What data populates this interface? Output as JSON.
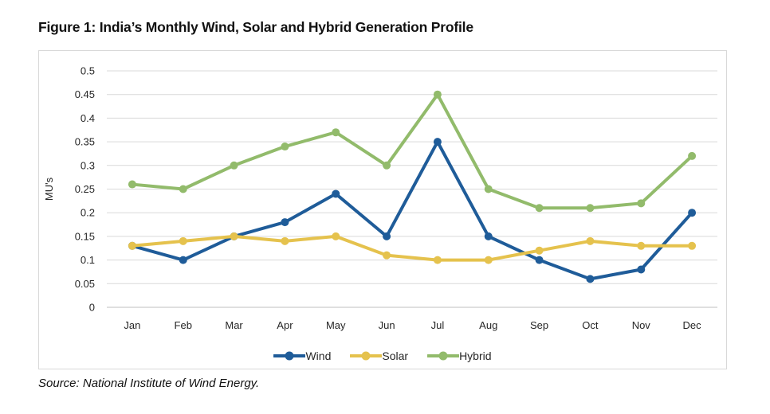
{
  "figure": {
    "title": "Figure 1: India’s Monthly Wind, Solar and Hybrid Generation Profile",
    "source": "Source: National Institute of Wind Energy."
  },
  "colors": {
    "gridline": "#d9d9d9",
    "zero_line": "#bfbfbf",
    "box_border": "#d9d9d9",
    "text": "#262626"
  },
  "chart_data": {
    "type": "line",
    "title": "",
    "xlabel": "",
    "ylabel": "MU's",
    "ylim": [
      0,
      0.5
    ],
    "grid": true,
    "legend_position": "bottom",
    "yticks": [
      0,
      0.05,
      0.1,
      0.15,
      0.2,
      0.25,
      0.3,
      0.35,
      0.4,
      0.45,
      0.5
    ],
    "ytick_labels": [
      "0",
      "0.05",
      "0.1",
      "0.15",
      "0.2",
      "0.25",
      "0.3",
      "0.35",
      "0.4",
      "0.45",
      "0.5"
    ],
    "categories": [
      "Jan",
      "Feb",
      "Mar",
      "Apr",
      "May",
      "Jun",
      "Jul",
      "Aug",
      "Sep",
      "Oct",
      "Nov",
      "Dec"
    ],
    "series": [
      {
        "name": "Wind",
        "color": "#1f5c99",
        "values": [
          0.13,
          0.1,
          0.15,
          0.18,
          0.24,
          0.15,
          0.35,
          0.15,
          0.1,
          0.06,
          0.08,
          0.2
        ]
      },
      {
        "name": "Solar",
        "color": "#e5c24d",
        "values": [
          0.13,
          0.14,
          0.15,
          0.14,
          0.15,
          0.11,
          0.1,
          0.1,
          0.12,
          0.14,
          0.13,
          0.13
        ]
      },
      {
        "name": "Hybrid",
        "color": "#92bb6b",
        "values": [
          0.26,
          0.25,
          0.3,
          0.34,
          0.37,
          0.3,
          0.45,
          0.25,
          0.21,
          0.21,
          0.22,
          0.32
        ]
      }
    ]
  }
}
